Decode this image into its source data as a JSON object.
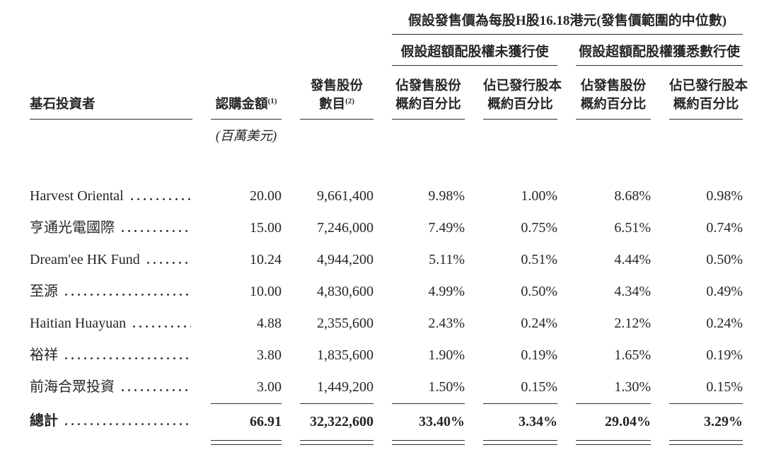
{
  "table": {
    "top_header": "假設發售價為每股H股16.18港元(發售價範圍的中位數)",
    "group_headers": {
      "not_exercised": "假設超額配股權未獲行使",
      "fully_exercised": "假設超額配股權獲悉數行使"
    },
    "columns": {
      "investor": "基石投資者",
      "amount": "認購金額",
      "amount_note": "(1)",
      "amount_unit": "(百萬美元)",
      "shares_line1": "發售股份",
      "shares_line2": "數目",
      "shares_note": "(2)",
      "pct_offer_line1": "佔發售股份",
      "pct_offer_line2": "概約百分比",
      "pct_issued_line1": "佔已發行股本",
      "pct_issued_line2": "概約百分比"
    },
    "rows": [
      {
        "name": "Harvest Oriental",
        "amount": "20.00",
        "shares": "9,661,400",
        "p1": "9.98%",
        "p2": "1.00%",
        "p3": "8.68%",
        "p4": "0.98%"
      },
      {
        "name": "亨通光電國際",
        "amount": "15.00",
        "shares": "7,246,000",
        "p1": "7.49%",
        "p2": "0.75%",
        "p3": "6.51%",
        "p4": "0.74%"
      },
      {
        "name": "Dream'ee HK Fund",
        "amount": "10.24",
        "shares": "4,944,200",
        "p1": "5.11%",
        "p2": "0.51%",
        "p3": "4.44%",
        "p4": "0.50%"
      },
      {
        "name": "至源",
        "amount": "10.00",
        "shares": "4,830,600",
        "p1": "4.99%",
        "p2": "0.50%",
        "p3": "4.34%",
        "p4": "0.49%"
      },
      {
        "name": "Haitian Huayuan",
        "amount": "4.88",
        "shares": "2,355,600",
        "p1": "2.43%",
        "p2": "0.24%",
        "p3": "2.12%",
        "p4": "0.24%"
      },
      {
        "name": "裕祥",
        "amount": "3.80",
        "shares": "1,835,600",
        "p1": "1.90%",
        "p2": "0.19%",
        "p3": "1.65%",
        "p4": "0.19%"
      },
      {
        "name": "前海合眾投資",
        "amount": "3.00",
        "shares": "1,449,200",
        "p1": "1.50%",
        "p2": "0.15%",
        "p3": "1.30%",
        "p4": "0.15%"
      }
    ],
    "total": {
      "name": "總計",
      "amount": "66.91",
      "shares": "32,322,600",
      "p1": "33.40%",
      "p2": "3.34%",
      "p3": "29.04%",
      "p4": "3.29%"
    }
  }
}
